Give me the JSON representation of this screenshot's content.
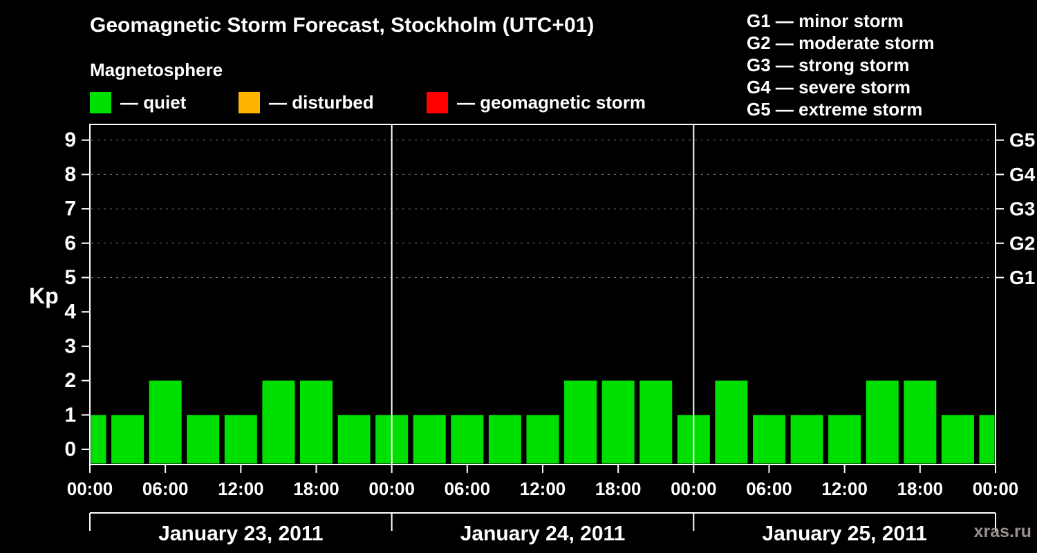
{
  "title": "Geomagnetic Storm Forecast, Stockholm (UTC+01)",
  "subtitle": "Magnetosphere",
  "legend": {
    "items": [
      {
        "label": "— quiet",
        "color": "#00e000"
      },
      {
        "label": "— disturbed",
        "color": "#ffb400"
      },
      {
        "label": "— geomagnetic storm",
        "color": "#ff0000"
      }
    ]
  },
  "g_legend": [
    "G1 — minor storm",
    "G2 — moderate storm",
    "G3 — strong storm",
    "G4 — severe storm",
    "G5 — extreme storm"
  ],
  "watermark": "xras.ru",
  "chart_data": {
    "type": "bar",
    "title": "Geomagnetic Storm Forecast, Stockholm (UTC+01)",
    "ylabel": "Kp",
    "ylim": [
      0,
      9
    ],
    "x_hours": [
      0,
      3,
      6,
      9,
      12,
      15,
      18,
      21,
      24,
      27,
      30,
      33,
      36,
      39,
      42,
      45,
      48,
      51,
      54,
      57,
      60,
      63,
      66,
      69,
      72
    ],
    "kp_values": [
      1,
      1,
      2,
      1,
      1,
      2,
      2,
      1,
      1,
      1,
      1,
      1,
      1,
      2,
      2,
      2,
      1,
      2,
      1,
      1,
      1,
      2,
      2,
      1,
      1
    ],
    "colors": {
      "quiet": "#00e000",
      "disturbed": "#ffb400",
      "storm": "#ff0000"
    },
    "y_ticks": [
      0,
      1,
      2,
      3,
      4,
      5,
      6,
      7,
      8,
      9
    ],
    "gridlines_kp": [
      5,
      6,
      7,
      8,
      9
    ],
    "right_axis": [
      {
        "kp": 5,
        "label": "G1"
      },
      {
        "kp": 6,
        "label": "G2"
      },
      {
        "kp": 7,
        "label": "G3"
      },
      {
        "kp": 8,
        "label": "G4"
      },
      {
        "kp": 9,
        "label": "G5"
      }
    ],
    "x_ticks": [
      {
        "hour": 0,
        "label": "00:00"
      },
      {
        "hour": 6,
        "label": "06:00"
      },
      {
        "hour": 12,
        "label": "12:00"
      },
      {
        "hour": 18,
        "label": "18:00"
      },
      {
        "hour": 24,
        "label": "00:00"
      },
      {
        "hour": 30,
        "label": "06:00"
      },
      {
        "hour": 36,
        "label": "12:00"
      },
      {
        "hour": 42,
        "label": "18:00"
      },
      {
        "hour": 48,
        "label": "00:00"
      },
      {
        "hour": 54,
        "label": "06:00"
      },
      {
        "hour": 60,
        "label": "12:00"
      },
      {
        "hour": 66,
        "label": "18:00"
      },
      {
        "hour": 72,
        "label": "00:00"
      }
    ],
    "day_boundaries_hours": [
      0,
      24,
      48,
      72
    ],
    "days": [
      "January 23, 2011",
      "January 24, 2011",
      "January 25, 2011"
    ],
    "legend_position": "top",
    "grid": "dashed-horizontal-5-to-9"
  }
}
